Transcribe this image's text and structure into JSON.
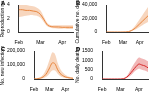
{
  "chart_data": [
    {
      "type": "line",
      "title": "A",
      "y_label": "Reproduction no.",
      "categories": [
        "Feb",
        null,
        null,
        null,
        null,
        null,
        "Mar",
        null,
        null,
        null,
        null,
        null,
        "Apr",
        null,
        null,
        null
      ],
      "values": [
        3.3,
        3.3,
        3.2,
        3.2,
        3.1,
        3.0,
        2.6,
        1.8,
        1.0,
        0.8,
        0.75,
        0.75,
        0.7,
        0.7,
        0.7,
        0.7
      ],
      "lower": [
        2.2,
        2.3,
        2.4,
        2.5,
        2.5,
        2.4,
        2.1,
        1.4,
        0.8,
        0.6,
        0.55,
        0.5,
        0.5,
        0.5,
        0.45,
        0.45
      ],
      "upper": [
        4.0,
        4.0,
        4.0,
        3.9,
        3.8,
        3.6,
        3.2,
        2.2,
        1.3,
        1.0,
        1.0,
        1.0,
        1.0,
        1.0,
        1.0,
        1.0
      ],
      "color": "#e8853d",
      "ylim": [
        0,
        4
      ],
      "yticks": [
        0,
        2,
        4
      ]
    },
    {
      "type": "line",
      "title": "B",
      "y_label": "Cumulative no. deaths",
      "categories": [
        "Feb",
        null,
        null,
        null,
        null,
        null,
        "Mar",
        null,
        null,
        null,
        null,
        null,
        "Apr",
        null,
        null,
        null
      ],
      "values": [
        0,
        0,
        0,
        0,
        0,
        0,
        10,
        100,
        600,
        2000,
        4500,
        8000,
        12000,
        16000,
        20000,
        24000
      ],
      "lower": [
        0,
        0,
        0,
        0,
        0,
        0,
        5,
        50,
        300,
        1200,
        2800,
        5000,
        7500,
        10000,
        12500,
        15000
      ],
      "upper": [
        0,
        0,
        0,
        0,
        0,
        0,
        20,
        200,
        1200,
        3500,
        7500,
        13000,
        19000,
        25000,
        31000,
        37000
      ],
      "color": "#e8853d",
      "ylim": [
        0,
        40000
      ],
      "yticks": [
        0,
        {
          "value": 20000,
          "label": "20,000"
        },
        {
          "value": 40000,
          "label": "40,000"
        }
      ]
    },
    {
      "type": "line",
      "title": "C",
      "y_label": "No. new infections",
      "categories": [
        "Feb",
        null,
        null,
        null,
        null,
        null,
        "Mar",
        null,
        null,
        null,
        null,
        null,
        "Apr",
        null,
        null,
        null
      ],
      "values": [
        500,
        1500,
        4000,
        10000,
        22000,
        45000,
        80000,
        115000,
        110000,
        70000,
        40000,
        25000,
        15000,
        10000,
        7000,
        5000
      ],
      "lower": [
        100,
        400,
        1200,
        3500,
        9000,
        20000,
        40000,
        60000,
        60000,
        40000,
        22000,
        13000,
        8000,
        5000,
        3000,
        2000
      ],
      "upper": [
        1500,
        4000,
        10000,
        22000,
        45000,
        85000,
        140000,
        190000,
        180000,
        120000,
        75000,
        48000,
        30000,
        20000,
        14000,
        10000
      ],
      "color": "#e8853d",
      "ylim": [
        0,
        200000
      ],
      "yticks": [
        0,
        {
          "value": 100000,
          "label": "100,000"
        },
        {
          "value": 200000,
          "label": "200,000"
        }
      ]
    },
    {
      "type": "line",
      "title": "D",
      "y_label": "No. daily deaths",
      "categories": [
        "Feb",
        null,
        null,
        null,
        null,
        null,
        "Mar",
        null,
        null,
        null,
        null,
        null,
        "Apr",
        null,
        null,
        null
      ],
      "values": [
        0,
        0,
        0,
        0,
        0,
        0,
        2,
        20,
        90,
        250,
        450,
        650,
        800,
        750,
        700,
        600
      ],
      "lower": [
        0,
        0,
        0,
        0,
        0,
        0,
        1,
        10,
        50,
        150,
        300,
        450,
        550,
        500,
        450,
        380
      ],
      "upper": [
        0,
        0,
        0,
        0,
        0,
        0,
        5,
        40,
        150,
        400,
        700,
        950,
        1150,
        1100,
        1050,
        950
      ],
      "color": "#d62728",
      "ylim": [
        0,
        1500
      ],
      "yticks": [
        0,
        500,
        1000,
        1500
      ]
    }
  ]
}
